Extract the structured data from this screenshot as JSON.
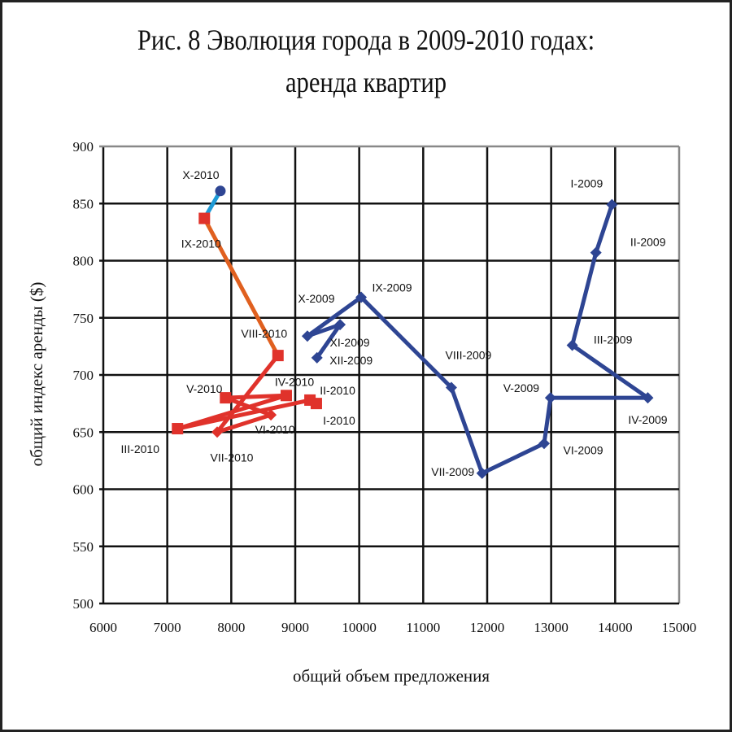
{
  "chart_data": {
    "type": "scatter",
    "title": "Рис. 8 Эволюция города в 2009-2010 годах:",
    "subtitle": "аренда квартир",
    "xlabel": "общий объем предложения",
    "ylabel": "общий индекс аренды ($)",
    "xlim": [
      6000,
      15000
    ],
    "ylim": [
      500,
      900
    ],
    "xticks": [
      6000,
      7000,
      8000,
      9000,
      10000,
      11000,
      12000,
      13000,
      14000,
      15000
    ],
    "yticks": [
      500,
      550,
      600,
      650,
      700,
      750,
      800,
      850,
      900
    ],
    "grid": true,
    "colors": {
      "2009": "#2e4593",
      "2010": "#e0322b",
      "VIII-IX-2010": "#e0601f",
      "IX-X-2010": "#1e9ad6",
      "X-2010-marker": "#2e4593"
    },
    "series": [
      {
        "name": "2009",
        "points": [
          {
            "label": "I-2009",
            "x": 13950,
            "y": 849
          },
          {
            "label": "II-2009",
            "x": 13700,
            "y": 807
          },
          {
            "label": "III-2009",
            "x": 13330,
            "y": 726
          },
          {
            "label": "IV-2009",
            "x": 14510,
            "y": 680
          },
          {
            "label": "V-2009",
            "x": 12990,
            "y": 680
          },
          {
            "label": "VI-2009",
            "x": 12890,
            "y": 640
          },
          {
            "label": "VII-2009",
            "x": 11920,
            "y": 614
          },
          {
            "label": "VIII-2009",
            "x": 11440,
            "y": 689
          },
          {
            "label": "IX-2009",
            "x": 10030,
            "y": 768
          },
          {
            "label": "X-2009",
            "x": 9190,
            "y": 734
          },
          {
            "label": "XI-2009",
            "x": 9700,
            "y": 744
          },
          {
            "label": "XII-2009",
            "x": 9340,
            "y": 715
          }
        ]
      },
      {
        "name": "2010",
        "points": [
          {
            "label": "I-2010",
            "x": 9330,
            "y": 675
          },
          {
            "label": "II-2010",
            "x": 9230,
            "y": 678
          },
          {
            "label": "III-2010",
            "x": 7160,
            "y": 653
          },
          {
            "label": "IV-2010",
            "x": 8860,
            "y": 682
          },
          {
            "label": "V-2010",
            "x": 7910,
            "y": 680
          },
          {
            "label": "VI-2010",
            "x": 8620,
            "y": 665
          },
          {
            "label": "VII-2010",
            "x": 7780,
            "y": 650
          },
          {
            "label": "VIII-2010",
            "x": 8730,
            "y": 717
          },
          {
            "label": "IX-2010",
            "x": 7580,
            "y": 837
          },
          {
            "label": "X-2010",
            "x": 7830,
            "y": 861
          }
        ]
      }
    ]
  }
}
